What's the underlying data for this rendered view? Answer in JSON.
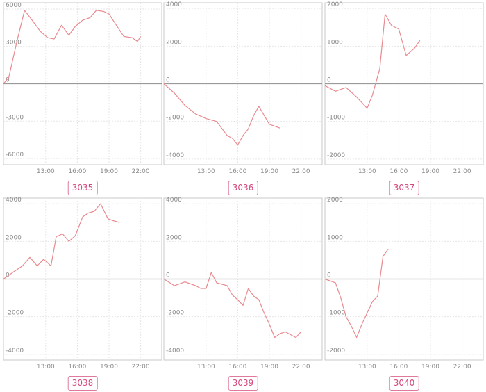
{
  "style": {
    "line_color": "#e88a8f",
    "frame_color": "#c8c8c8",
    "grid_color": "#e6e6e6",
    "zero_line_color": "#9a9a9a",
    "tick_color": "#8a8a8a",
    "badge_border": "#e07a9c",
    "badge_text": "#d6477d"
  },
  "chart_data": [
    {
      "type": "line",
      "label": "3035",
      "ylim": [
        -6500,
        6500
      ],
      "yticks": [
        6000,
        3000,
        0,
        -3000,
        -6000
      ],
      "ytick_labels": [
        "6000",
        "3000",
        "0",
        "-3000",
        "-6000"
      ],
      "xlim": [
        9,
        24
      ],
      "xticks": [
        13,
        16,
        19,
        22
      ],
      "xtick_labels": [
        "13:00",
        "16:00",
        "19:00",
        "22:00"
      ],
      "grid": true,
      "x": [
        9.0,
        9.5,
        10.3,
        11.0,
        11.8,
        12.5,
        13.2,
        13.8,
        14.5,
        15.2,
        15.8,
        16.5,
        17.2,
        17.8,
        18.5,
        19.0,
        19.7,
        20.4,
        21.2,
        21.7,
        22.0
      ],
      "y": [
        0,
        500,
        3500,
        5900,
        5000,
        4200,
        3700,
        3600,
        4700,
        3900,
        4600,
        5100,
        5300,
        5900,
        5800,
        5600,
        4700,
        3800,
        3700,
        3400,
        3800
      ]
    },
    {
      "type": "line",
      "label": "3036",
      "ylim": [
        -4300,
        4300
      ],
      "yticks": [
        4000,
        2000,
        0,
        -2000,
        -4000
      ],
      "ytick_labels": [
        "4000",
        "2000",
        "0",
        "-2000",
        "-4000"
      ],
      "xlim": [
        9,
        24
      ],
      "xticks": [
        13,
        16,
        19,
        22
      ],
      "xtick_labels": [
        "13:00",
        "16:00",
        "19:00",
        "22:00"
      ],
      "grid": true,
      "x": [
        9.0,
        10.0,
        11.0,
        12.0,
        13.0,
        14.0,
        15.0,
        15.5,
        16.0,
        16.5,
        17.0,
        17.5,
        18.0,
        19.0,
        20.0
      ],
      "y": [
        0,
        -500,
        -1150,
        -1600,
        -1850,
        -2000,
        -2750,
        -2900,
        -3250,
        -2750,
        -2400,
        -1700,
        -1200,
        -2150,
        -2350
      ]
    },
    {
      "type": "line",
      "label": "3037",
      "ylim": [
        -2150,
        2150
      ],
      "yticks": [
        2000,
        1000,
        0,
        -1000,
        -2000
      ],
      "ytick_labels": [
        "2000",
        "1000",
        "0",
        "-1000",
        "-2000"
      ],
      "xlim": [
        9,
        24
      ],
      "xticks": [
        13,
        16,
        19,
        22
      ],
      "xtick_labels": [
        "13:00",
        "16:00",
        "19:00",
        "22:00"
      ],
      "grid": true,
      "x": [
        9.0,
        10.0,
        11.0,
        12.0,
        12.5,
        13.0,
        13.5,
        14.2,
        14.7,
        15.3,
        16.0,
        16.7,
        17.5,
        18.0
      ],
      "y": [
        -50,
        -200,
        -100,
        -350,
        -500,
        -650,
        -300,
        400,
        1850,
        1550,
        1450,
        750,
        950,
        1150
      ]
    },
    {
      "type": "line",
      "label": "3038",
      "ylim": [
        -4300,
        4300
      ],
      "yticks": [
        4000,
        2000,
        0,
        -2000,
        -4000
      ],
      "ytick_labels": [
        "4000",
        "2000",
        "0",
        "-2000",
        "-4000"
      ],
      "xlim": [
        9,
        24
      ],
      "xticks": [
        13,
        16,
        19,
        22
      ],
      "xtick_labels": [
        "13:00",
        "16:00",
        "19:00",
        "22:00"
      ],
      "grid": true,
      "x": [
        9.0,
        10.0,
        10.8,
        11.5,
        12.2,
        12.8,
        13.5,
        14.0,
        14.6,
        15.2,
        15.8,
        16.5,
        17.0,
        17.6,
        18.2,
        18.9,
        19.4,
        20.0
      ],
      "y": [
        0,
        400,
        700,
        1150,
        700,
        1050,
        700,
        2250,
        2400,
        2000,
        2300,
        3300,
        3500,
        3600,
        4000,
        3200,
        3100,
        3000
      ]
    },
    {
      "type": "line",
      "label": "3039",
      "ylim": [
        -4300,
        4300
      ],
      "yticks": [
        4000,
        2000,
        0,
        -2000,
        -4000
      ],
      "ytick_labels": [
        "4000",
        "2000",
        "0",
        "-2000",
        "-4000"
      ],
      "xlim": [
        9,
        24
      ],
      "xticks": [
        13,
        16,
        19,
        22
      ],
      "xtick_labels": [
        "13:00",
        "16:00",
        "19:00",
        "22:00"
      ],
      "grid": true,
      "x": [
        9.0,
        10.0,
        10.5,
        11.0,
        12.0,
        12.5,
        13.0,
        13.5,
        14.0,
        15.0,
        15.5,
        16.0,
        16.5,
        17.0,
        17.5,
        18.0,
        18.5,
        19.0,
        19.5,
        20.0,
        20.5,
        21.5,
        22.0
      ],
      "y": [
        0,
        -350,
        -250,
        -150,
        -350,
        -500,
        -500,
        350,
        -200,
        -350,
        -850,
        -1100,
        -1400,
        -500,
        -900,
        -1100,
        -1800,
        -2400,
        -3100,
        -2900,
        -2800,
        -3100,
        -2800
      ]
    },
    {
      "type": "line",
      "label": "3040",
      "ylim": [
        -2150,
        2150
      ],
      "yticks": [
        2000,
        1000,
        0,
        -1000,
        -2000
      ],
      "ytick_labels": [
        "2000",
        "1000",
        "0",
        "-1000",
        "-2000"
      ],
      "xlim": [
        9,
        24
      ],
      "xticks": [
        13,
        16,
        19,
        22
      ],
      "xtick_labels": [
        "13:00",
        "16:00",
        "19:00",
        "22:00"
      ],
      "grid": true,
      "x": [
        9.0,
        10.0,
        10.5,
        11.0,
        11.5,
        12.0,
        12.5,
        13.0,
        13.5,
        14.0,
        14.5,
        15.0
      ],
      "y": [
        0,
        -100,
        -500,
        -1000,
        -1250,
        -1550,
        -1200,
        -900,
        -600,
        -450,
        600,
        800
      ]
    }
  ]
}
